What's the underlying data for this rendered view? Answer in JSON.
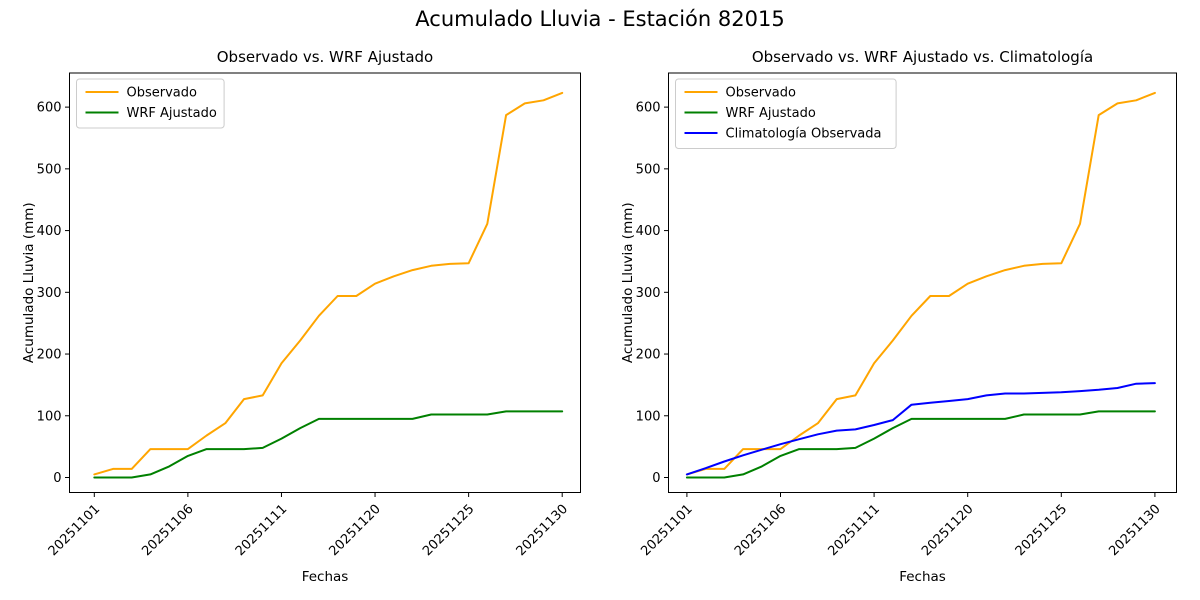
{
  "figure": {
    "title": "Acumulado Lluvia - Estación 82015"
  },
  "colors": {
    "observado": "#FFA500",
    "wrf_ajustado": "#008000",
    "climatologia": "#0000FF",
    "axis": "#000000",
    "legend_border": "#cccccc"
  },
  "chart_data": [
    {
      "type": "line",
      "title": "Observado vs. WRF Ajustado",
      "xlabel": "Fechas",
      "ylabel": "Acumulado Lluvia (mm)",
      "n_points": 26,
      "x_tick_labels": [
        "20251101",
        "20251106",
        "20251111",
        "20251120",
        "20251125",
        "20251130"
      ],
      "x_tick_positions": [
        0,
        5,
        10,
        15,
        20,
        25
      ],
      "y_ticks": [
        0,
        100,
        200,
        300,
        400,
        500,
        600
      ],
      "ylim": [
        -30,
        655
      ],
      "grid": false,
      "legend_position": "upper left",
      "series": [
        {
          "name": "Observado",
          "color": "#FFA500",
          "values": [
            5,
            14,
            14,
            46,
            46,
            46,
            68,
            88,
            127,
            133,
            185,
            222,
            262,
            294,
            294,
            314,
            326,
            336,
            343,
            346,
            347,
            411,
            587,
            606,
            611,
            623
          ]
        },
        {
          "name": "WRF Ajustado",
          "color": "#008000",
          "values": [
            0,
            0,
            0,
            5,
            18,
            35,
            46,
            46,
            46,
            48,
            63,
            80,
            95,
            95,
            95,
            95,
            95,
            95,
            102,
            102,
            102,
            102,
            107,
            107,
            107,
            107
          ]
        }
      ]
    },
    {
      "type": "line",
      "title": "Observado vs. WRF Ajustado vs. Climatología",
      "xlabel": "Fechas",
      "ylabel": "Acumulado Lluvia (mm)",
      "n_points": 26,
      "x_tick_labels": [
        "20251101",
        "20251106",
        "20251111",
        "20251120",
        "20251125",
        "20251130"
      ],
      "x_tick_positions": [
        0,
        5,
        10,
        15,
        20,
        25
      ],
      "y_ticks": [
        0,
        100,
        200,
        300,
        400,
        500,
        600
      ],
      "ylim": [
        -30,
        655
      ],
      "grid": false,
      "legend_position": "upper left",
      "series": [
        {
          "name": "Observado",
          "color": "#FFA500",
          "values": [
            5,
            14,
            14,
            46,
            46,
            46,
            68,
            88,
            127,
            133,
            185,
            222,
            262,
            294,
            294,
            314,
            326,
            336,
            343,
            346,
            347,
            411,
            587,
            606,
            611,
            623
          ]
        },
        {
          "name": "WRF Ajustado",
          "color": "#008000",
          "values": [
            0,
            0,
            0,
            5,
            18,
            35,
            46,
            46,
            46,
            48,
            63,
            80,
            95,
            95,
            95,
            95,
            95,
            95,
            102,
            102,
            102,
            102,
            107,
            107,
            107,
            107
          ]
        },
        {
          "name": "Climatología Observada",
          "color": "#0000FF",
          "values": [
            5,
            15,
            26,
            36,
            45,
            54,
            62,
            70,
            76,
            78,
            85,
            93,
            118,
            121,
            124,
            127,
            133,
            136,
            136,
            137,
            138,
            140,
            142,
            145,
            152,
            153
          ]
        }
      ]
    }
  ]
}
